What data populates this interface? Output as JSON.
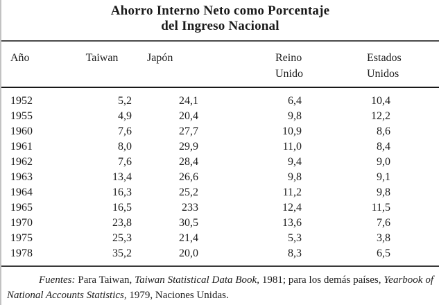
{
  "title": {
    "line1": "Ahorro Interno Neto como Porcentaje",
    "line2": "del Ingreso Nacional"
  },
  "table": {
    "columns": [
      {
        "line1": "Año",
        "line2": ""
      },
      {
        "line1": "Taiwan",
        "line2": ""
      },
      {
        "line1": "Japón",
        "line2": ""
      },
      {
        "line1": "Reino",
        "line2": "Unido"
      },
      {
        "line1": "Estados",
        "line2": "Unidos"
      }
    ],
    "rows": [
      [
        "1952",
        "5,2",
        "24,1",
        "6,4",
        "10,4"
      ],
      [
        "1955",
        "4,9",
        "20,4",
        "9,8",
        "12,2"
      ],
      [
        "1960",
        "7,6",
        "27,7",
        "10,9",
        "8,6"
      ],
      [
        "1961",
        "8,0",
        "29,9",
        "11,0",
        "8,4"
      ],
      [
        "1962",
        "7,6",
        "28,4",
        "9,4",
        "9,0"
      ],
      [
        "1963",
        "13,4",
        "26,6",
        "9,8",
        "9,1"
      ],
      [
        "1964",
        "16,3",
        "25,2",
        "11,2",
        "9,8"
      ],
      [
        "1965",
        "16,5",
        "233",
        "12,4",
        "11,5"
      ],
      [
        "1970",
        "23,8",
        "30,5",
        "13,6",
        "7,6"
      ],
      [
        "1975",
        "25,3",
        "21,4",
        "5,3",
        "3,8"
      ],
      [
        "1978",
        "35,2",
        "20,0",
        "8,3",
        "6,5"
      ]
    ]
  },
  "footer": {
    "parts": [
      {
        "text": "Fuentes:"
      },
      {
        "text": " Para Taiwan, "
      },
      {
        "text": "Taiwan Statistical Data Book,"
      },
      {
        "text": " 1981; para los demás países, "
      },
      {
        "text": "Yearbook of National Accounts Statistics,"
      },
      {
        "text": " 1979, Naciones Unidas."
      }
    ]
  },
  "colors": {
    "text": "#1b1b1b",
    "rule": "#3a3a3a",
    "background": "#ffffff"
  }
}
